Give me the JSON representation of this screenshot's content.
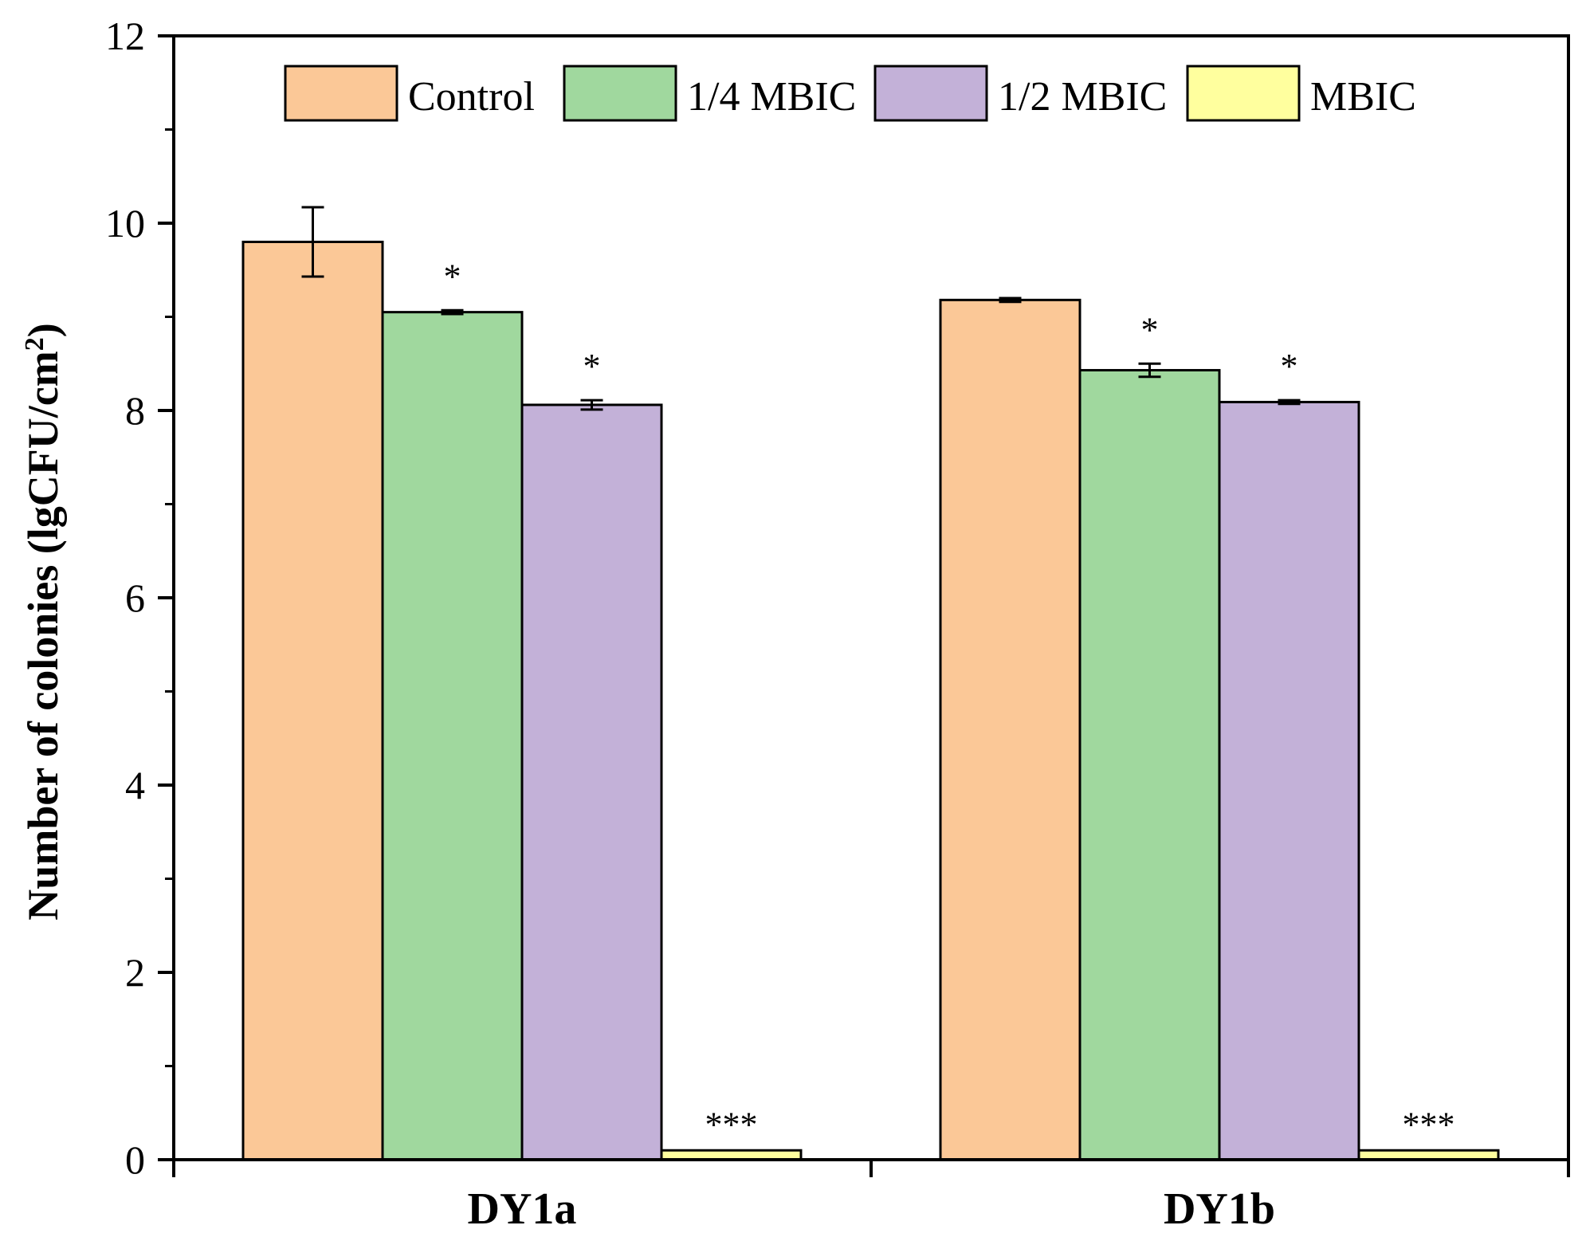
{
  "chart_data": {
    "type": "bar",
    "title": "",
    "xlabel": "",
    "ylabel": "Number of colonies (lgCFU/cm",
    "ylabel_superscript": "2",
    "ylabel_close": ")",
    "ylim": [
      0,
      12
    ],
    "yticks": [
      "0",
      "2",
      "4",
      "6",
      "8",
      "10",
      "12"
    ],
    "legend_position": "top",
    "categories": [
      "DY1a",
      "DY1b"
    ],
    "series": [
      {
        "name": "Control",
        "color": "#FBC897",
        "values": [
          9.8,
          9.18
        ],
        "errors": [
          0.37,
          0.02
        ],
        "significance": [
          "",
          ""
        ]
      },
      {
        "name": "1/4 MBIC",
        "color": "#A0D89E",
        "values": [
          9.05,
          8.43
        ],
        "errors": [
          0.02,
          0.07
        ],
        "significance": [
          "*",
          "*"
        ]
      },
      {
        "name": "1/2 MBIC",
        "color": "#C3B1D8",
        "values": [
          8.06,
          8.09
        ],
        "errors": [
          0.05,
          0.02
        ],
        "significance": [
          "*",
          "*"
        ]
      },
      {
        "name": "MBIC",
        "color": "#FFFF9E",
        "values": [
          0.1,
          0.1
        ],
        "errors": [
          0,
          0
        ],
        "significance": [
          "***",
          "***"
        ]
      }
    ]
  }
}
